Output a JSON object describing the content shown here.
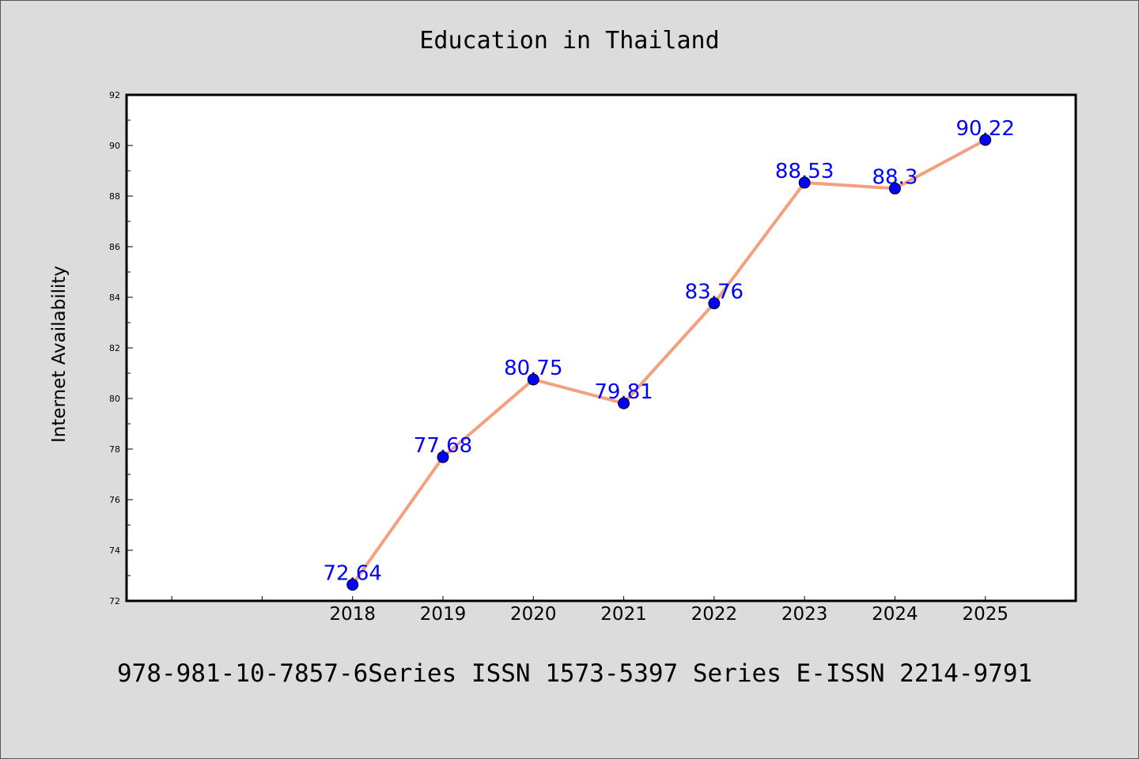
{
  "chart_data": {
    "type": "line",
    "title": "Education in Thailand",
    "xlabel": "",
    "ylabel": "Internet Availability",
    "categories": [
      "2018",
      "2019",
      "2020",
      "2021",
      "2022",
      "2023",
      "2024",
      "2025"
    ],
    "series": [
      {
        "values": [
          72.64,
          77.68,
          80.75,
          79.81,
          83.76,
          88.53,
          88.3,
          90.22
        ],
        "data_labels": [
          "72.64",
          "77.68",
          "80.75",
          "79.81",
          "83.76",
          "88.53",
          "88.3",
          "90.22"
        ],
        "line_color": "#f4a07e",
        "marker_color": "#0000ff"
      }
    ],
    "ylim": [
      72,
      92
    ],
    "y_ticks": [
      "72",
      "74",
      "76",
      "78",
      "80",
      "82",
      "84",
      "86",
      "88",
      "90",
      "92"
    ],
    "x_slots_before_first_category": 2,
    "grid": false,
    "legend": "none"
  },
  "footer": {
    "text": "978-981-10-7857-6Series ISSN 1573-5397 Series E-ISSN 2214-9791"
  },
  "colors": {
    "background": "#dcdcdc",
    "plot_background": "#ffffff",
    "data_label": "#0000ff"
  }
}
